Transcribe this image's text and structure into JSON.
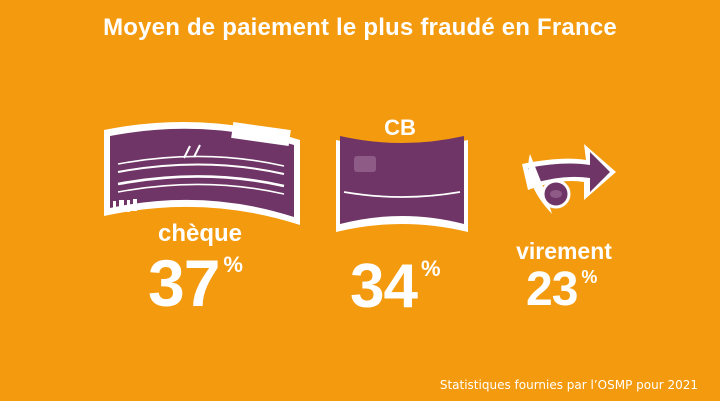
{
  "title": "Moyen de paiement le plus fraudé en France",
  "items": [
    {
      "label": "chèque",
      "value": "37",
      "unit": "%",
      "icon": "cheque-icon"
    },
    {
      "label": "CB",
      "value": "34",
      "unit": "%",
      "icon": "credit-card-icon"
    },
    {
      "label": "virement",
      "value": "23",
      "unit": "%",
      "icon": "bank-transfer-icon"
    }
  ],
  "source": "Statistiques fournies par l’OSMP pour 2021",
  "colors": {
    "background": "#F39A0E",
    "purple": "#6E3566",
    "text": "#FFFFFF"
  }
}
